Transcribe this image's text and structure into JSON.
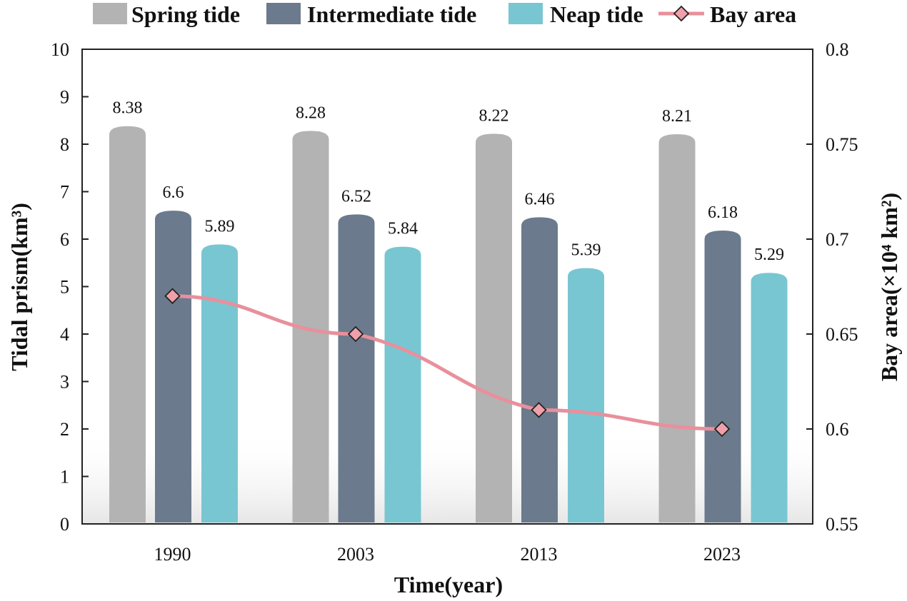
{
  "chart_data": {
    "type": "bar",
    "categories": [
      "1990",
      "2003",
      "2013",
      "2023"
    ],
    "series": [
      {
        "name": "Spring tide",
        "axis": "left",
        "kind": "bar",
        "color": "#b3b3b3",
        "values": [
          8.38,
          8.28,
          8.22,
          8.21
        ]
      },
      {
        "name": "Intermediate tide",
        "axis": "left",
        "kind": "bar",
        "color": "#6b7a8c",
        "values": [
          6.6,
          6.52,
          6.46,
          6.18
        ]
      },
      {
        "name": "Neap tide",
        "axis": "left",
        "kind": "bar",
        "color": "#78c6d2",
        "values": [
          5.89,
          5.84,
          5.39,
          5.29
        ]
      },
      {
        "name": "Bay area",
        "axis": "right",
        "kind": "line",
        "color": "#e8909c",
        "values": [
          0.67,
          0.65,
          0.61,
          0.6
        ]
      }
    ],
    "data_labels": [
      [
        "8.38",
        "8.28",
        "8.22",
        "8.21"
      ],
      [
        "6.6",
        "6.52",
        "6.46",
        "6.18"
      ],
      [
        "5.89",
        "5.84",
        "5.39",
        "5.29"
      ]
    ],
    "xlabel": "Time(year)",
    "ylabel": "Tidal prism(km³)",
    "y2label": "Bay area(×10⁴ km²)",
    "ylim": [
      0,
      10
    ],
    "y2lim": [
      0.55,
      0.8
    ],
    "yticks": [
      "0",
      "1",
      "2",
      "3",
      "4",
      "5",
      "6",
      "7",
      "8",
      "9",
      "10"
    ],
    "y2ticks": [
      "0.55",
      "0.6",
      "0.65",
      "0.7",
      "0.75",
      "0.8"
    ],
    "legend_position": "top",
    "grid": false
  }
}
